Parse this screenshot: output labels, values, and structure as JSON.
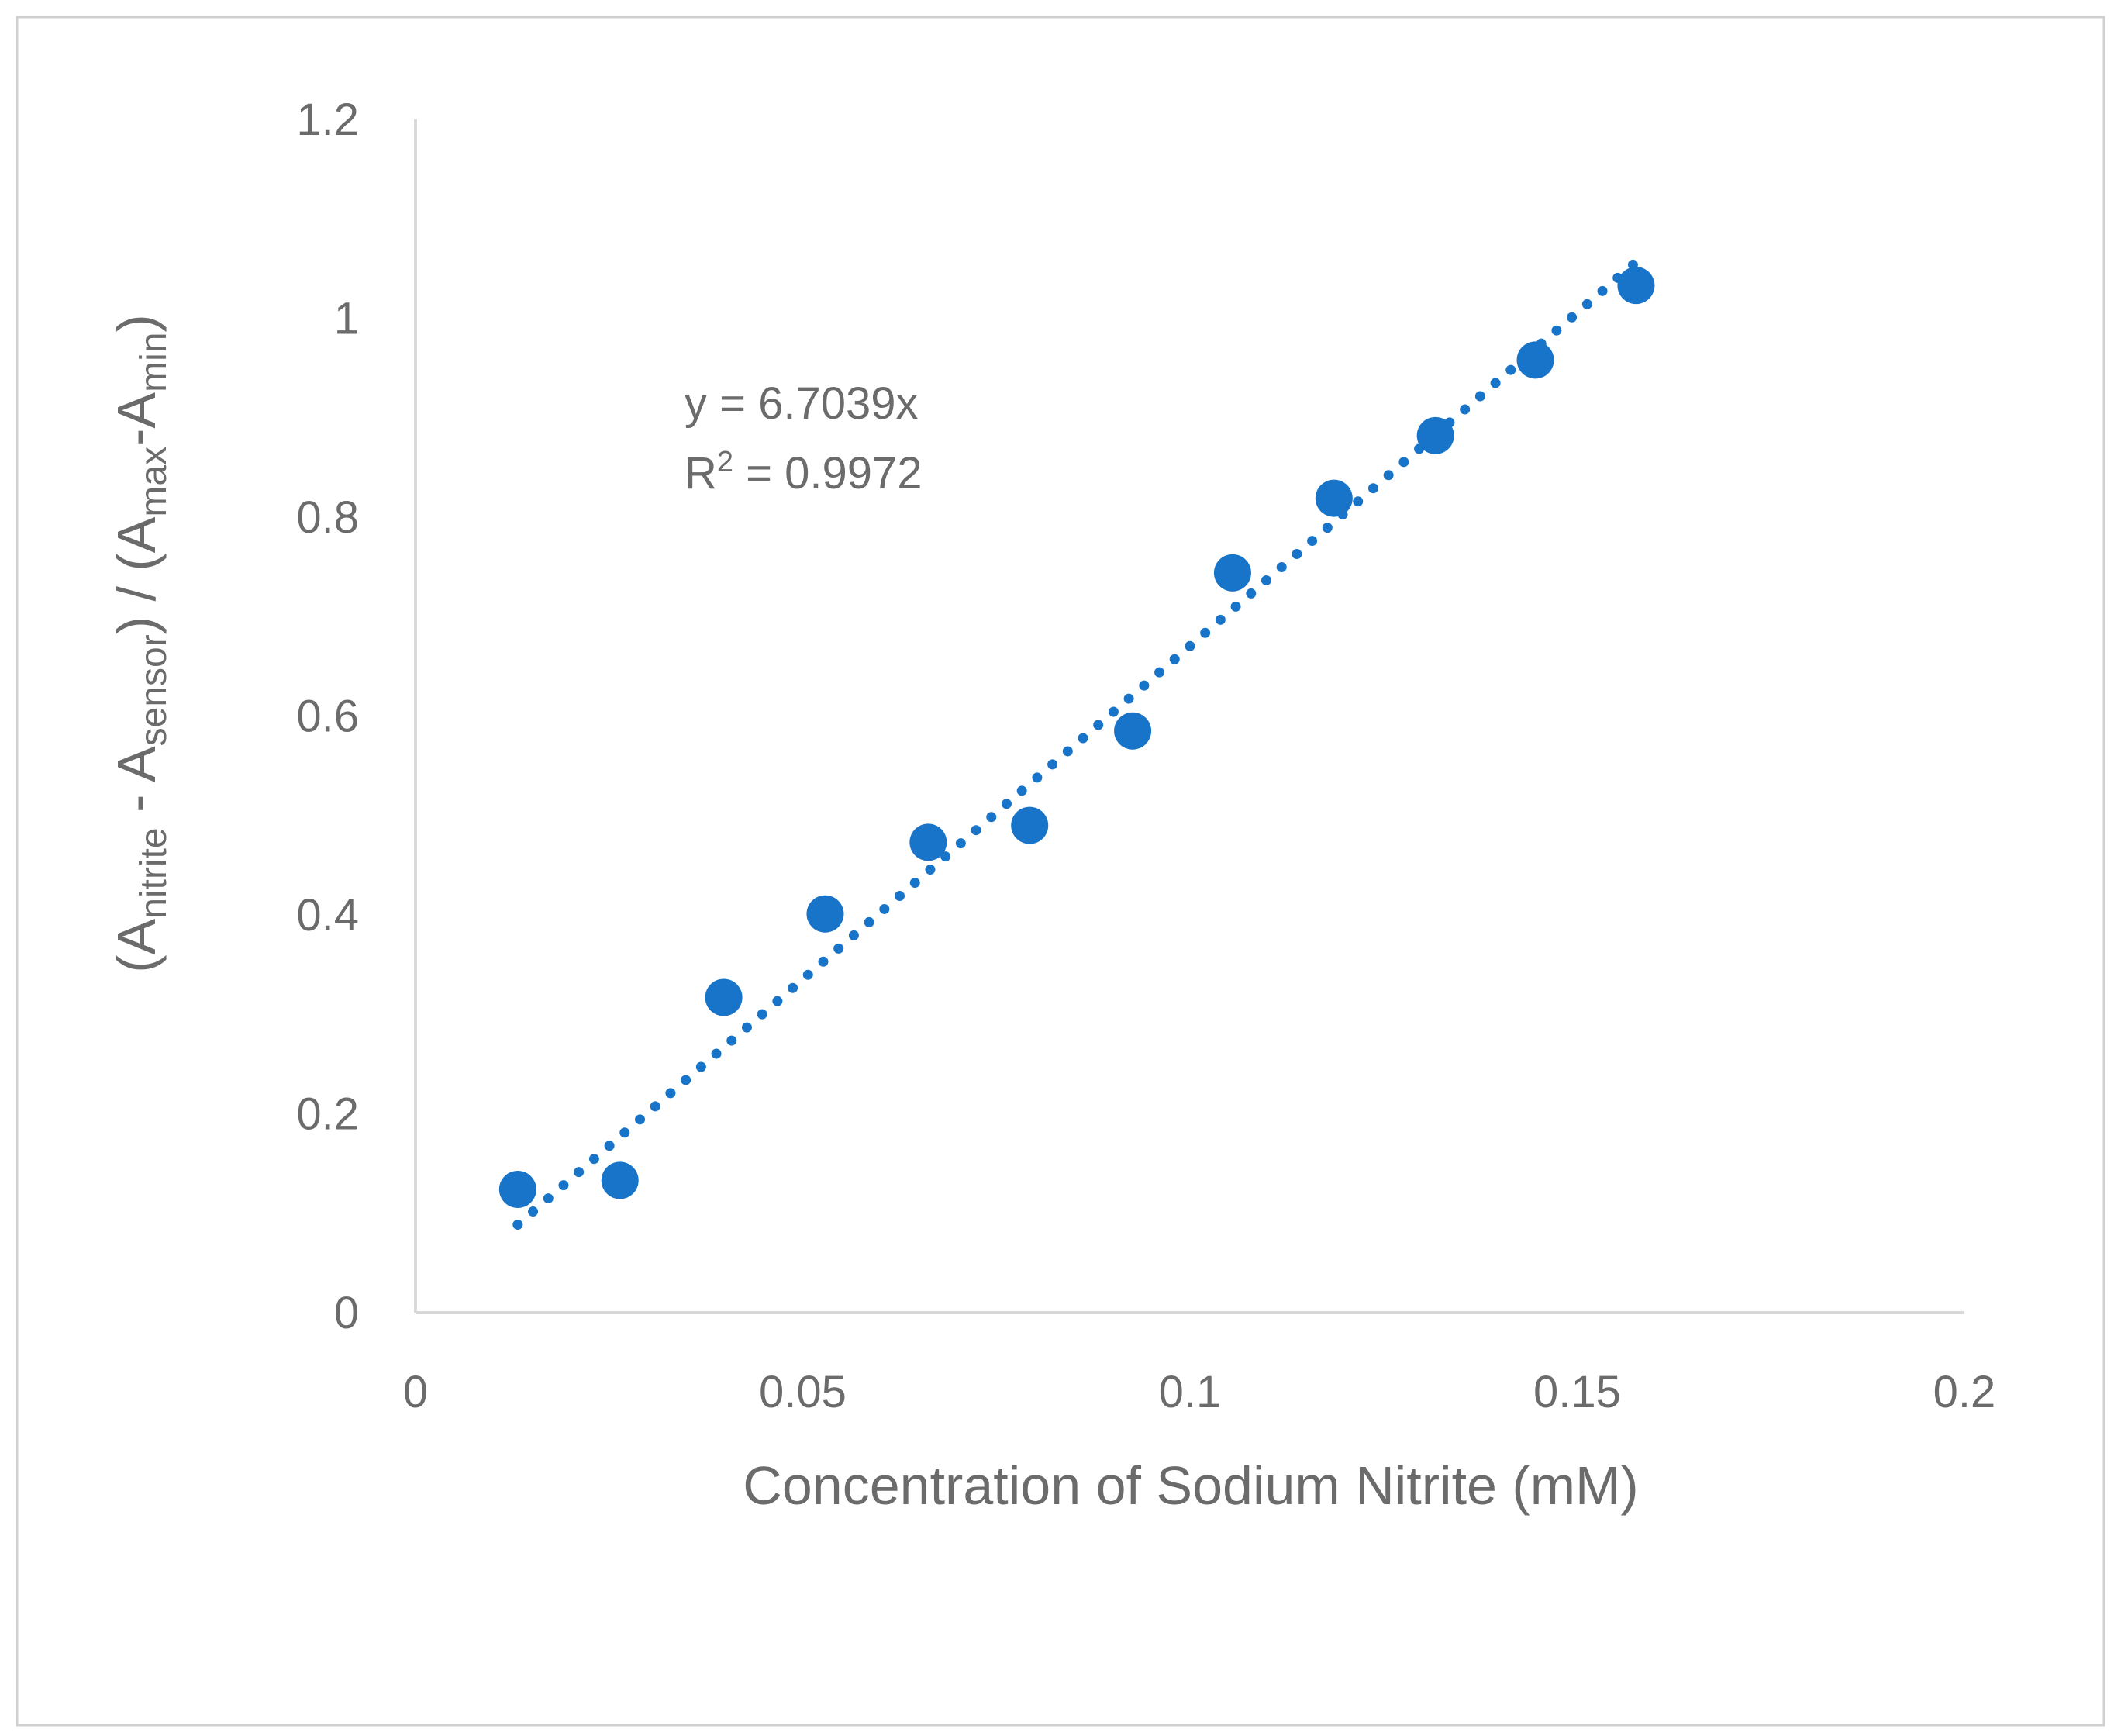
{
  "chart_data": {
    "type": "scatter",
    "xlabel": "Concentration of Sodium Nitrite (mM)",
    "ylabel_parts": [
      {
        "text": "(A",
        "sub": false
      },
      {
        "text": "nitrite",
        "sub": true
      },
      {
        "text": " - A",
        "sub": false
      },
      {
        "text": "sensor",
        "sub": true
      },
      {
        "text": ") / (A",
        "sub": false
      },
      {
        "text": "max",
        "sub": true
      },
      {
        "text": "-A",
        "sub": false
      },
      {
        "text": "min",
        "sub": true
      },
      {
        "text": ")",
        "sub": false
      }
    ],
    "xlim": [
      0,
      0.2
    ],
    "ylim": [
      0,
      1.2
    ],
    "xticks": [
      "0",
      "0.05",
      "0.1",
      "0.15",
      "0.2"
    ],
    "xtick_values": [
      0,
      0.05,
      0.1,
      0.15,
      0.2
    ],
    "yticks": [
      "0",
      "0.2",
      "0.4",
      "0.6",
      "0.8",
      "1",
      "1.2"
    ],
    "ytick_values": [
      0,
      0.2,
      0.4,
      0.6,
      0.8,
      1.0,
      1.2
    ],
    "grid": false,
    "marker_color": "#1874c8",
    "series": [
      {
        "x": [
          0.0132,
          0.0264,
          0.0398,
          0.0529,
          0.0662,
          0.0793,
          0.0926,
          0.1055,
          0.1186,
          0.1317,
          0.1446,
          0.1576
        ],
        "y": [
          0.124,
          0.133,
          0.317,
          0.401,
          0.473,
          0.49,
          0.585,
          0.744,
          0.819,
          0.882,
          0.958,
          1.033
        ]
      }
    ],
    "trendline": {
      "type": "linear",
      "slope": 6.7039,
      "intercept": 0,
      "x_range": [
        0.0132,
        0.158
      ],
      "style": "dotted"
    },
    "annotations": {
      "equation": "y = 6.7039x",
      "r2_prefix": "R",
      "r2_sup": "2",
      "r2_value": " = 0.9972"
    }
  }
}
